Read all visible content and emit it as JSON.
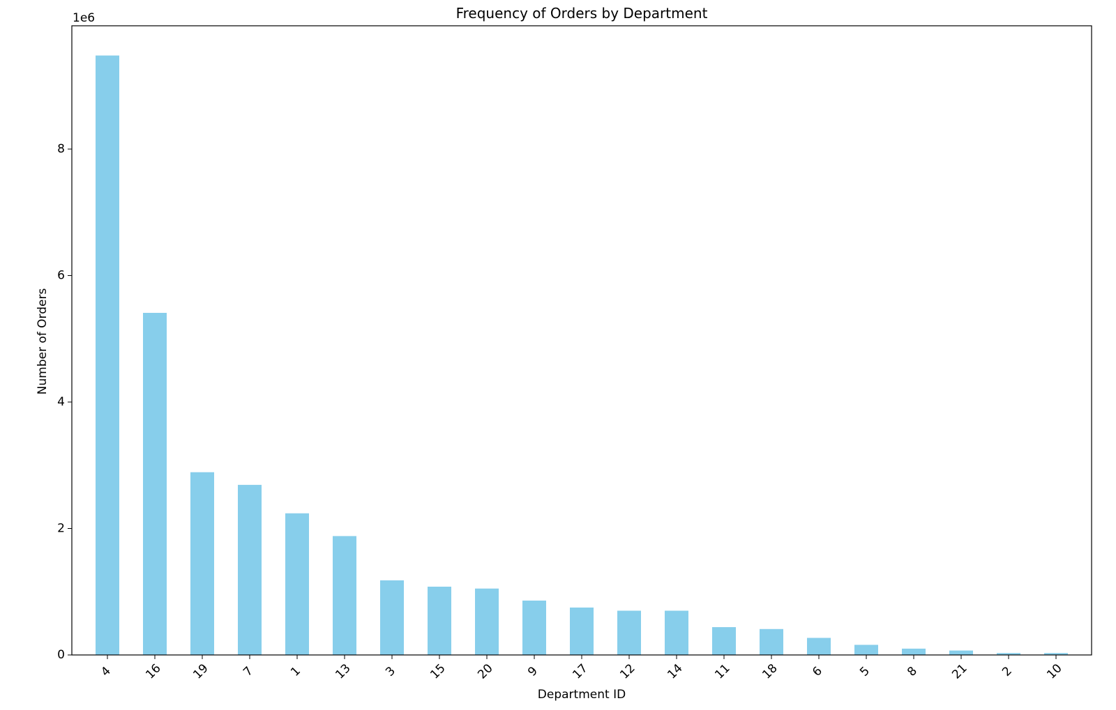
{
  "chart_data": {
    "type": "bar",
    "title": "Frequency of Orders by Department",
    "xlabel": "Department ID",
    "ylabel": "Number of Orders",
    "y_scale_label": "1e6",
    "categories": [
      "4",
      "16",
      "19",
      "7",
      "1",
      "13",
      "3",
      "15",
      "20",
      "9",
      "17",
      "12",
      "14",
      "11",
      "18",
      "6",
      "5",
      "8",
      "21",
      "2",
      "10"
    ],
    "values": [
      9480000,
      5410000,
      2890000,
      2690000,
      2240000,
      1880000,
      1180000,
      1080000,
      1050000,
      860000,
      750000,
      700000,
      700000,
      440000,
      410000,
      270000,
      160000,
      100000,
      70000,
      30000,
      30000
    ],
    "y_ticks": [
      0,
      2,
      4,
      6,
      8
    ],
    "y_tick_multiplier": 1000000,
    "ylim": [
      0,
      9950000
    ],
    "grid": false,
    "legend": false,
    "bar_color": "#87ceeb"
  }
}
